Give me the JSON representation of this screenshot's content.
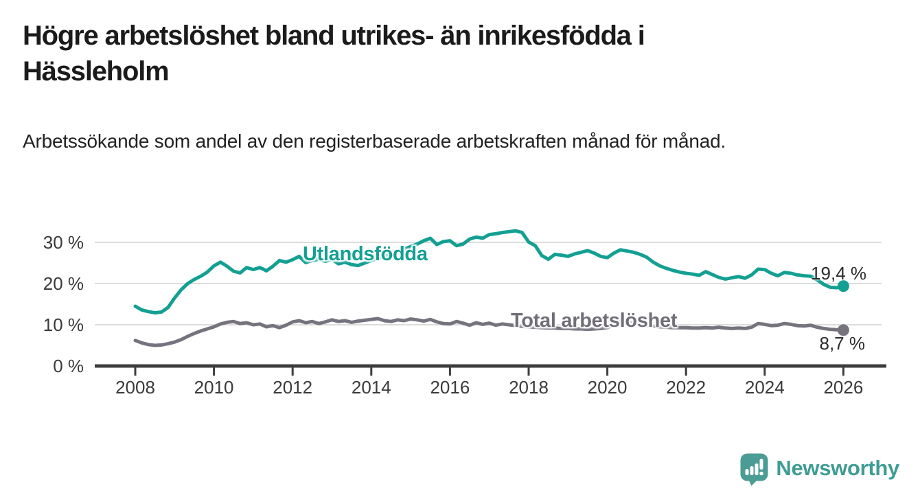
{
  "header": {
    "title": "Högre arbetslöshet bland utrikes- än inrikesfödda i Hässleholm",
    "subtitle": "Arbetssökande som andel av den registerbaserade arbetskraften månad för månad."
  },
  "chart_data": {
    "type": "line",
    "title": "Högre arbetslöshet bland utrikes- än inrikesfödda i Hässleholm",
    "xlabel": "",
    "ylabel": "",
    "grid": true,
    "legend": "inline-labels",
    "x_axis": {
      "tick_years": [
        2008,
        2010,
        2012,
        2014,
        2016,
        2018,
        2020,
        2022,
        2024,
        2026
      ],
      "range": [
        2008,
        2026.2
      ]
    },
    "y_axis": {
      "unit": "%",
      "range": [
        0,
        33
      ],
      "ticks": [
        {
          "value": 0,
          "label": "0 %"
        },
        {
          "value": 10,
          "label": "10 %"
        },
        {
          "value": 20,
          "label": "20 %"
        },
        {
          "value": 30,
          "label": "30 %"
        }
      ]
    },
    "sampling": {
      "x_start": 2008.0,
      "points_per_year": 6
    },
    "series": [
      {
        "name": "Utlandsfödda",
        "color": "#13a093",
        "last_value": 19.4,
        "last_value_label": "19,4 %",
        "values": [
          14.5,
          13.6,
          13.2,
          12.9,
          13.1,
          14.2,
          16.5,
          18.5,
          20.0,
          21.0,
          21.8,
          22.8,
          24.3,
          25.2,
          24.2,
          23.0,
          22.6,
          23.9,
          23.4,
          23.9,
          23.1,
          24.2,
          25.6,
          25.2,
          25.8,
          26.6,
          25.1,
          25.6,
          25.9,
          25.4,
          25.9,
          24.8,
          25.2,
          24.6,
          24.4,
          25.0,
          25.6,
          26.2,
          26.6,
          27.0,
          27.6,
          28.3,
          29.0,
          29.6,
          30.4,
          31.0,
          29.5,
          30.2,
          30.4,
          29.2,
          29.6,
          30.8,
          31.3,
          31.0,
          31.9,
          32.1,
          32.4,
          32.6,
          32.8,
          32.4,
          30.1,
          29.2,
          26.8,
          25.9,
          27.1,
          26.9,
          26.6,
          27.2,
          27.6,
          28.0,
          27.4,
          26.6,
          26.3,
          27.4,
          28.2,
          27.9,
          27.6,
          27.1,
          26.4,
          25.2,
          24.3,
          23.7,
          23.2,
          22.8,
          22.5,
          22.3,
          22.0,
          22.9,
          22.2,
          21.5,
          21.1,
          21.4,
          21.7,
          21.3,
          22.1,
          23.5,
          23.4,
          22.5,
          21.9,
          22.7,
          22.5,
          22.1,
          21.9,
          21.8,
          20.9,
          19.8,
          19.1,
          19.0,
          19.4
        ]
      },
      {
        "name": "Total arbetslöshet",
        "color": "#76737e",
        "last_value": 8.7,
        "last_value_label": "8,7 %",
        "values": [
          6.2,
          5.6,
          5.2,
          5.0,
          5.1,
          5.4,
          5.8,
          6.4,
          7.2,
          7.9,
          8.5,
          9.0,
          9.5,
          10.2,
          10.6,
          10.8,
          10.3,
          10.5,
          10.0,
          10.2,
          9.5,
          9.8,
          9.3,
          9.9,
          10.7,
          11.0,
          10.5,
          10.8,
          10.3,
          10.7,
          11.2,
          10.8,
          11.0,
          10.6,
          10.9,
          11.1,
          11.3,
          11.5,
          11.0,
          10.8,
          11.2,
          11.0,
          11.4,
          11.2,
          10.9,
          11.3,
          10.7,
          10.3,
          10.2,
          10.8,
          10.4,
          9.9,
          10.5,
          10.1,
          10.4,
          9.9,
          10.2,
          10.0,
          9.8,
          9.6,
          9.5,
          9.4,
          9.3,
          9.2,
          9.2,
          9.1,
          9.1,
          9.0,
          9.0,
          8.9,
          9.0,
          9.1,
          9.3,
          10.0,
          10.8,
          10.6,
          10.4,
          10.1,
          9.9,
          9.7,
          9.5,
          9.4,
          9.3,
          9.3,
          9.3,
          9.2,
          9.2,
          9.3,
          9.2,
          9.4,
          9.2,
          9.1,
          9.2,
          9.1,
          9.4,
          10.3,
          10.1,
          9.8,
          9.9,
          10.3,
          10.1,
          9.8,
          9.7,
          9.9,
          9.4,
          9.1,
          8.9,
          8.8,
          8.7
        ]
      }
    ],
    "colors": {
      "gridline": "#dcdcdc",
      "axis": "#3d3d3d",
      "tick_label": "#3a3a3a"
    }
  },
  "branding": {
    "name": "Newsworthy",
    "icon": "newsworthy-chart-bubble-icon",
    "color": "#3f9c94",
    "icon_color": "#4a9c94"
  }
}
